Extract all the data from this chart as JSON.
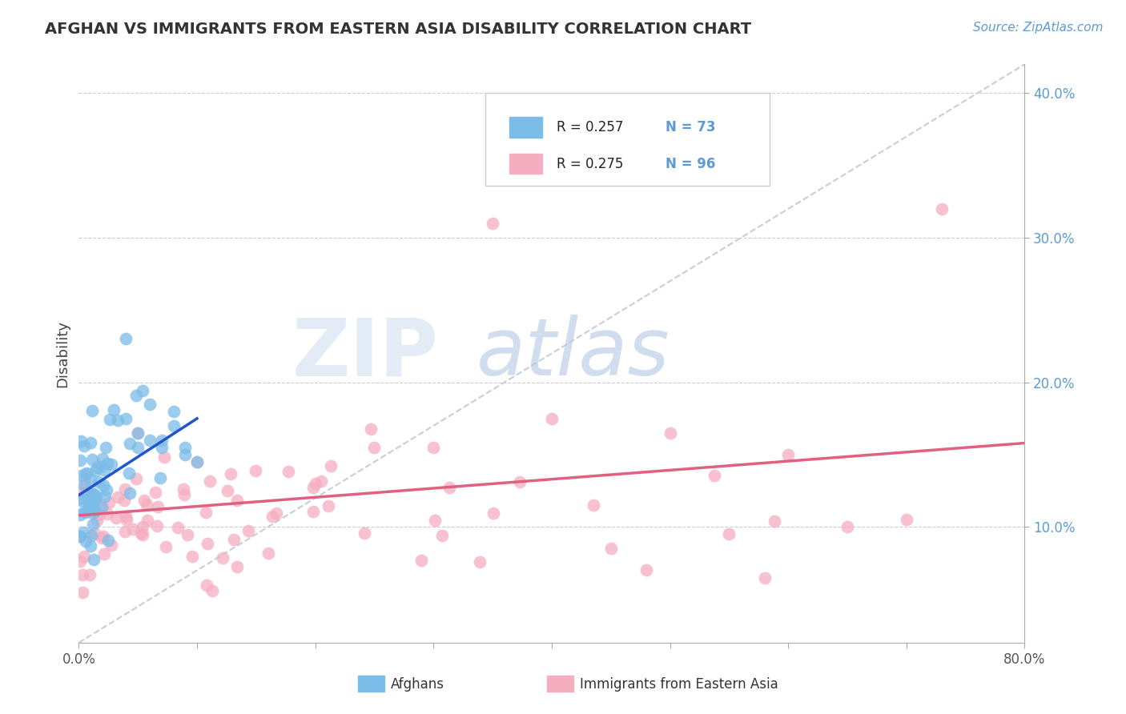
{
  "title": "AFGHAN VS IMMIGRANTS FROM EASTERN ASIA DISABILITY CORRELATION CHART",
  "source": "Source: ZipAtlas.com",
  "ylabel": "Disability",
  "xlim": [
    0.0,
    0.8
  ],
  "ylim": [
    0.02,
    0.42
  ],
  "legend_r1": "R = 0.257",
  "legend_n1": "N = 73",
  "legend_r2": "R = 0.275",
  "legend_n2": "N = 96",
  "color_afghan": "#7bbce8",
  "color_eastern": "#f5adc0",
  "color_line_afghan": "#2255cc",
  "color_line_eastern": "#e06080",
  "color_dashed": "#c0c8d8",
  "watermark_zip": "ZIP",
  "watermark_atlas": "atlas"
}
